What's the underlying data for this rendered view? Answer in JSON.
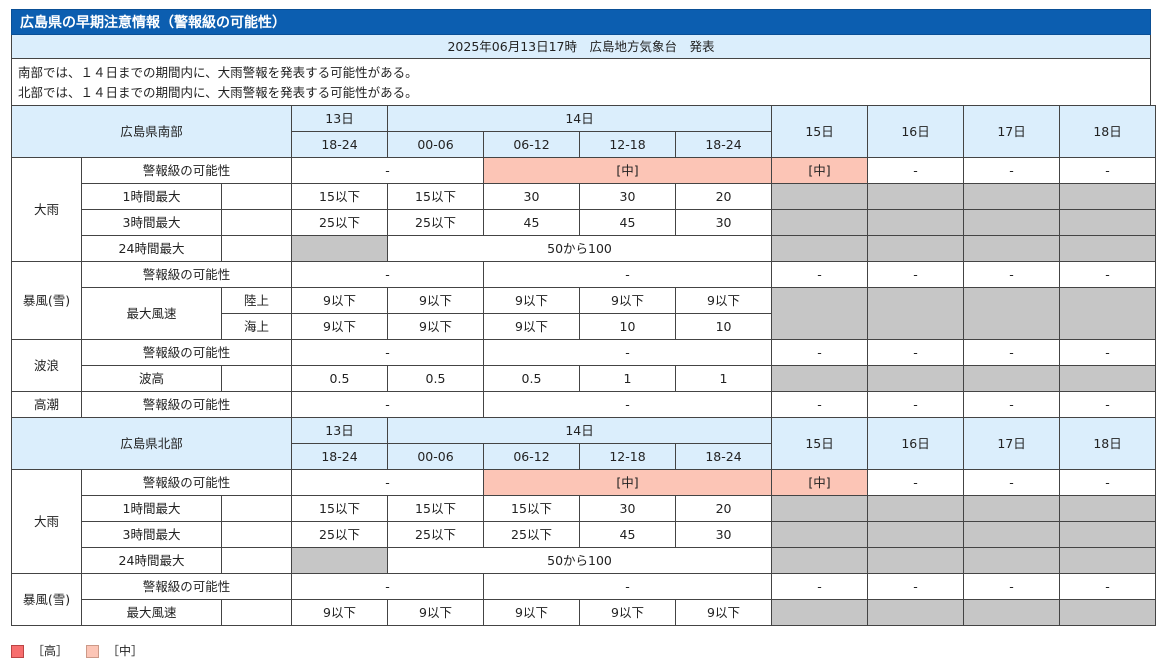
{
  "title": "広島県の早期注意情報（警報級の可能性）",
  "issued": "2025年06月13日17時　広島地方気象台　発表",
  "summary": [
    "南部では、１４日までの期間内に、大雨警報を発表する可能性がある。",
    "北部では、１４日までの期間内に、大雨警報を発表する可能性がある。"
  ],
  "headers": {
    "south": "広島県南部",
    "north": "広島県北部",
    "day13": "13日",
    "day14": "14日",
    "day15": "15日",
    "day16": "16日",
    "day17": "17日",
    "day18": "18日",
    "slots": [
      "18-24",
      "00-06",
      "06-12",
      "12-18",
      "18-24"
    ]
  },
  "labels": {
    "heavy_rain": "大雨",
    "storm": "暴風(雪)",
    "waves": "波浪",
    "tide": "高潮",
    "possibility": "警報級の可能性",
    "max_1h": "1時間最大",
    "max_3h": "3時間最大",
    "max_24h": "24時間最大",
    "max_wind": "最大風速",
    "land": "陸上",
    "sea": "海上",
    "wave_height": "波高"
  },
  "dash": "-",
  "level_mid": "[中]",
  "south": {
    "rain_1h": [
      "15以下",
      "15以下",
      "30",
      "30",
      "20"
    ],
    "rain_3h": [
      "25以下",
      "25以下",
      "45",
      "45",
      "30"
    ],
    "rain_24h": "50から100",
    "wind_land": [
      "9以下",
      "9以下",
      "9以下",
      "9以下",
      "9以下"
    ],
    "wind_sea": [
      "9以下",
      "9以下",
      "9以下",
      "10",
      "10"
    ],
    "wave_height": [
      "0.5",
      "0.5",
      "0.5",
      "1",
      "1"
    ]
  },
  "north": {
    "rain_1h": [
      "15以下",
      "15以下",
      "15以下",
      "30",
      "20"
    ],
    "rain_3h": [
      "25以下",
      "25以下",
      "25以下",
      "45",
      "30"
    ],
    "rain_24h": "50から100",
    "wind": [
      "9以下",
      "9以下",
      "9以下",
      "9以下",
      "9以下"
    ]
  },
  "legend": {
    "high": "［高］",
    "mid": "［中］"
  },
  "colors": {
    "title_bar": "#0c5eb0",
    "header_bg": "#dbeefc",
    "mid": "#fcc5b6",
    "high": "#f76e6e",
    "no_data": "#c6c6c6"
  }
}
